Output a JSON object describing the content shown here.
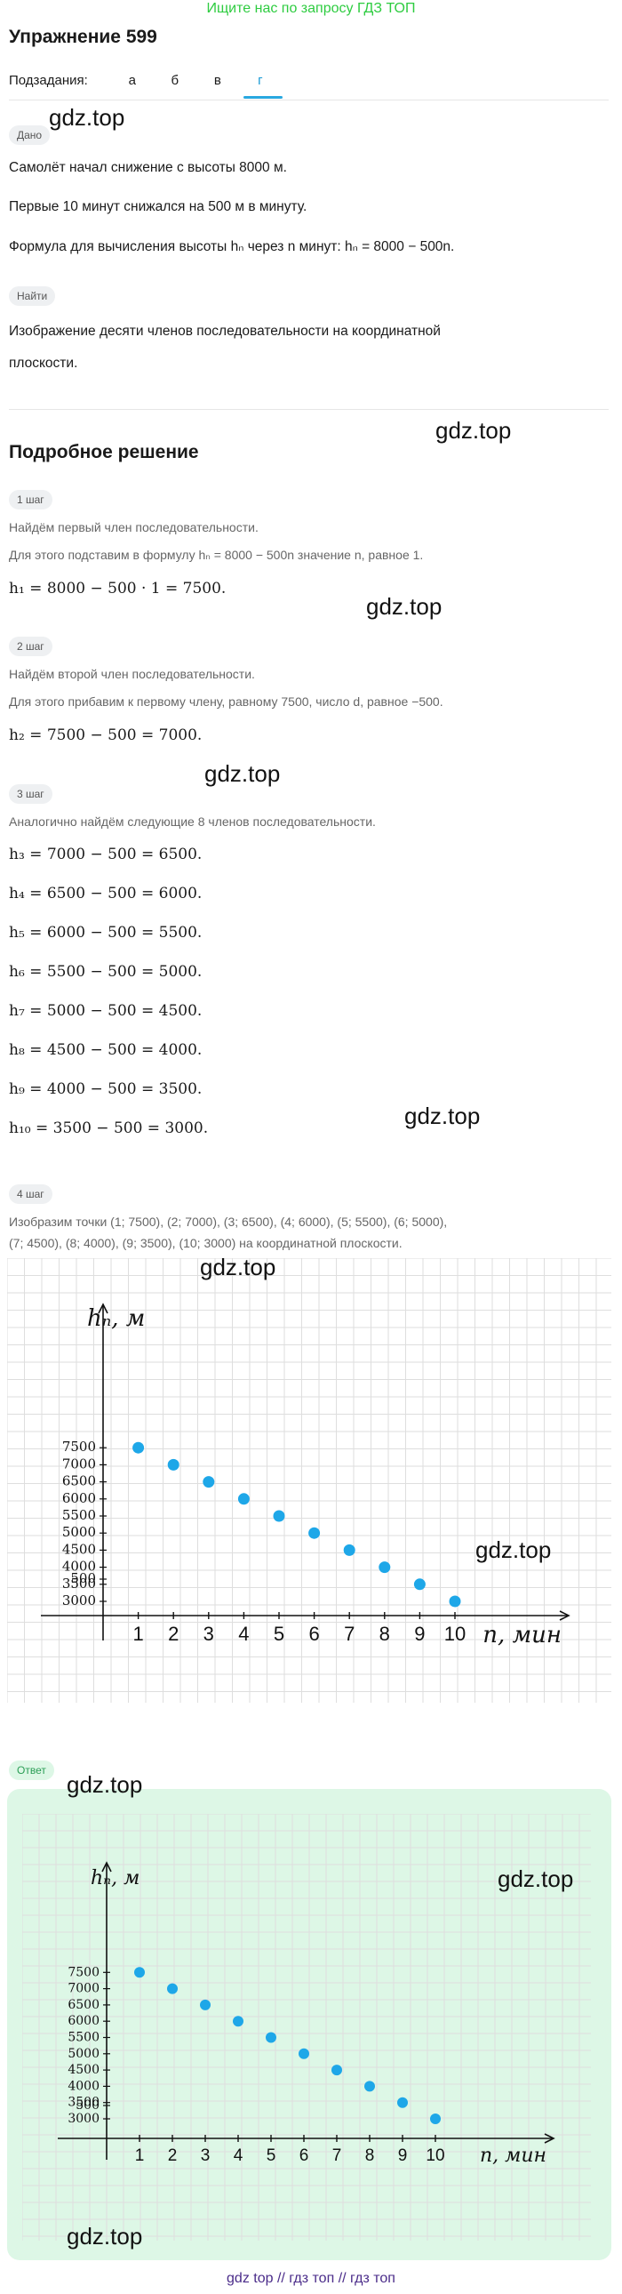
{
  "banner": "Ищите нас по запросу ГДЗ ТОП",
  "title": "Упражнение 599",
  "subtasks": {
    "label": "Подзадания:",
    "items": [
      "а",
      "б",
      "в",
      "г"
    ],
    "active": "г"
  },
  "watermark": "gdz.top",
  "given": {
    "chip": "Дано",
    "lines": [
      "Самолёт начал снижение с высоты 8000 м.",
      "Первые 10 минут снижался на 500 м в минуту.",
      "Формула для вычисления высоты hₙ через n минут: hₙ = 8000 − 500n."
    ]
  },
  "find": {
    "chip": "Найти",
    "lines": [
      "Изображение десяти членов последовательности на координатной",
      "плоскости."
    ]
  },
  "solution_title": "Подробное решение",
  "steps": [
    {
      "chip": "1 шаг",
      "lines": [
        "Найдём первый член последовательности.",
        "Для этого подставим в формулу hₙ = 8000 − 500n значение n, равное 1."
      ],
      "equations": [
        "h₁ = 8000 − 500 · 1 = 7500."
      ]
    },
    {
      "chip": "2 шаг",
      "lines": [
        "Найдём второй член последовательности.",
        "Для этого прибавим к первому члену, равному 7500, число d, равное −500."
      ],
      "equations": [
        "h₂ = 7500 − 500 = 7000."
      ]
    },
    {
      "chip": "3 шаг",
      "lines": [
        "Аналогично найдём следующие 8 членов последовательности."
      ],
      "equations": [
        "h₃ = 7000 − 500 = 6500.",
        "h₄ = 6500 − 500 = 6000.",
        "h₅ = 6000 − 500 = 5500.",
        "h₆ = 5500 − 500 = 5000.",
        "h₇ = 5000 − 500 = 4500.",
        "h₈ = 4500 − 500 = 4000.",
        "h₉ = 4000 − 500 = 3500.",
        "h₁₀ = 3500 − 500 = 3000."
      ]
    },
    {
      "chip": "4 шаг",
      "lines": [
        "Изобразим точки (1; 7500), (2; 7000), (3; 6500), (4; 6000), (5; 5500), (6; 5000),",
        "(7; 4500), (8; 4000), (9; 3500), (10; 3000) на координатной плоскости."
      ],
      "equations": []
    }
  ],
  "answer_chip": "Ответ",
  "footer": "gdz top  //  гдз топ  //  гдз топ",
  "chart_data": {
    "type": "scatter",
    "xlabel": "n, мин",
    "ylabel": "hₙ, м",
    "x": [
      1,
      2,
      3,
      4,
      5,
      6,
      7,
      8,
      9,
      10
    ],
    "y": [
      7500,
      7000,
      6500,
      6000,
      5500,
      5000,
      4500,
      4000,
      3500,
      3000
    ],
    "x_ticks": [
      "1",
      "2",
      "3",
      "4",
      "5",
      "6",
      "7",
      "8",
      "9",
      "10"
    ],
    "y_ticks": [
      "7500",
      "7000",
      "6500",
      "6000",
      "5500",
      "5000",
      "4500",
      "4000",
      "3500",
      "3000",
      "500"
    ],
    "point_color": "#1ea7e8",
    "grid": true
  }
}
